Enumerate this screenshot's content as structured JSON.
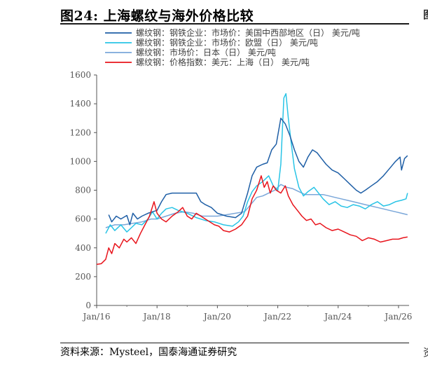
{
  "header": {
    "title": "图24:  上海螺纹与海外价格比较",
    "source": "资料来源：Mysteel，国泰海通证券研究",
    "edge_glyph_top": "图",
    "edge_glyph_bottom": "资"
  },
  "chart_data": {
    "type": "line",
    "title": "",
    "xlabel": "",
    "ylabel": "",
    "ylim": [
      0,
      1600
    ],
    "yticks": [
      0,
      200,
      400,
      600,
      800,
      1000,
      1200,
      1400,
      1600
    ],
    "xticks": [
      "Jan/16",
      "Jan/18",
      "Jan/20",
      "Jan/22",
      "Jan/24",
      "Jan/26"
    ],
    "xrange": [
      2016.0,
      2026.35
    ],
    "grid": false,
    "legend_position": "top",
    "series": [
      {
        "name": "螺纹钢：钢铁企业：市场价：美国中西部地区（日） 美元/吨",
        "color": "#1f5fa6",
        "points": [
          [
            2016.4,
            630
          ],
          [
            2016.5,
            580
          ],
          [
            2016.65,
            620
          ],
          [
            2016.8,
            600
          ],
          [
            2017.0,
            625
          ],
          [
            2017.1,
            560
          ],
          [
            2017.2,
            640
          ],
          [
            2017.35,
            600
          ],
          [
            2017.5,
            620
          ],
          [
            2017.7,
            640
          ],
          [
            2017.85,
            650
          ],
          [
            2018.0,
            660
          ],
          [
            2018.15,
            720
          ],
          [
            2018.3,
            770
          ],
          [
            2018.5,
            780
          ],
          [
            2018.7,
            780
          ],
          [
            2019.0,
            780
          ],
          [
            2019.3,
            780
          ],
          [
            2019.45,
            720
          ],
          [
            2019.6,
            700
          ],
          [
            2019.8,
            680
          ],
          [
            2020.0,
            640
          ],
          [
            2020.3,
            620
          ],
          [
            2020.6,
            610
          ],
          [
            2020.8,
            640
          ],
          [
            2021.0,
            780
          ],
          [
            2021.15,
            900
          ],
          [
            2021.3,
            960
          ],
          [
            2021.5,
            980
          ],
          [
            2021.65,
            990
          ],
          [
            2021.8,
            1080
          ],
          [
            2021.95,
            1120
          ],
          [
            2022.1,
            1300
          ],
          [
            2022.25,
            1260
          ],
          [
            2022.4,
            1180
          ],
          [
            2022.55,
            1080
          ],
          [
            2022.7,
            1000
          ],
          [
            2022.85,
            960
          ],
          [
            2023.0,
            1030
          ],
          [
            2023.15,
            1080
          ],
          [
            2023.3,
            1060
          ],
          [
            2023.45,
            1020
          ],
          [
            2023.6,
            980
          ],
          [
            2023.8,
            940
          ],
          [
            2024.0,
            920
          ],
          [
            2024.2,
            880
          ],
          [
            2024.4,
            840
          ],
          [
            2024.6,
            800
          ],
          [
            2024.75,
            780
          ],
          [
            2024.9,
            800
          ],
          [
            2025.1,
            830
          ],
          [
            2025.3,
            860
          ],
          [
            2025.5,
            900
          ],
          [
            2025.7,
            950
          ],
          [
            2025.9,
            1000
          ],
          [
            2026.05,
            1030
          ],
          [
            2026.1,
            940
          ],
          [
            2026.2,
            1020
          ],
          [
            2026.3,
            1040
          ]
        ]
      },
      {
        "name": "螺纹钢：钢铁企业：市场价：欧盟（日） 美元/吨",
        "color": "#29c4e6",
        "points": [
          [
            2016.3,
            500
          ],
          [
            2016.45,
            560
          ],
          [
            2016.6,
            520
          ],
          [
            2016.8,
            560
          ],
          [
            2017.0,
            510
          ],
          [
            2017.15,
            540
          ],
          [
            2017.3,
            570
          ],
          [
            2017.5,
            560
          ],
          [
            2017.7,
            600
          ],
          [
            2017.85,
            650
          ],
          [
            2018.0,
            600
          ],
          [
            2018.15,
            640
          ],
          [
            2018.3,
            670
          ],
          [
            2018.5,
            680
          ],
          [
            2018.7,
            660
          ],
          [
            2019.0,
            640
          ],
          [
            2019.3,
            610
          ],
          [
            2019.6,
            590
          ],
          [
            2019.9,
            580
          ],
          [
            2020.2,
            560
          ],
          [
            2020.5,
            550
          ],
          [
            2020.7,
            580
          ],
          [
            2020.85,
            620
          ],
          [
            2021.0,
            720
          ],
          [
            2021.15,
            790
          ],
          [
            2021.3,
            830
          ],
          [
            2021.5,
            860
          ],
          [
            2021.7,
            900
          ],
          [
            2021.85,
            830
          ],
          [
            2022.0,
            800
          ],
          [
            2022.1,
            980
          ],
          [
            2022.2,
            1440
          ],
          [
            2022.27,
            1470
          ],
          [
            2022.35,
            1300
          ],
          [
            2022.45,
            1120
          ],
          [
            2022.55,
            950
          ],
          [
            2022.7,
            820
          ],
          [
            2022.85,
            760
          ],
          [
            2023.0,
            790
          ],
          [
            2023.2,
            820
          ],
          [
            2023.35,
            780
          ],
          [
            2023.5,
            740
          ],
          [
            2023.7,
            700
          ],
          [
            2023.9,
            720
          ],
          [
            2024.1,
            690
          ],
          [
            2024.3,
            680
          ],
          [
            2024.5,
            700
          ],
          [
            2024.7,
            690
          ],
          [
            2024.9,
            670
          ],
          [
            2025.1,
            700
          ],
          [
            2025.3,
            720
          ],
          [
            2025.5,
            690
          ],
          [
            2025.7,
            700
          ],
          [
            2025.9,
            720
          ],
          [
            2026.1,
            730
          ],
          [
            2026.25,
            740
          ],
          [
            2026.3,
            780
          ]
        ]
      },
      {
        "name": "螺纹钢：市场价：日本（日） 美元/吨",
        "color": "#7aa7d9",
        "points": [
          [
            2016.3,
            540
          ],
          [
            2016.6,
            560
          ],
          [
            2016.9,
            560
          ],
          [
            2017.2,
            570
          ],
          [
            2017.5,
            580
          ],
          [
            2017.8,
            600
          ],
          [
            2018.0,
            600
          ],
          [
            2018.3,
            620
          ],
          [
            2018.6,
            640
          ],
          [
            2018.9,
            650
          ],
          [
            2019.2,
            640
          ],
          [
            2019.5,
            620
          ],
          [
            2019.8,
            620
          ],
          [
            2020.0,
            620
          ],
          [
            2020.3,
            630
          ],
          [
            2020.6,
            640
          ],
          [
            2020.9,
            650
          ],
          [
            2021.1,
            700
          ],
          [
            2021.3,
            750
          ],
          [
            2021.5,
            760
          ],
          [
            2021.7,
            780
          ],
          [
            2021.9,
            800
          ],
          [
            2022.1,
            840
          ],
          [
            2022.3,
            820
          ],
          [
            2022.5,
            810
          ],
          [
            2022.7,
            790
          ],
          [
            2022.9,
            770
          ],
          [
            2023.1,
            770
          ],
          [
            2023.3,
            770
          ],
          [
            2023.5,
            770
          ],
          [
            2023.7,
            760
          ],
          [
            2023.9,
            750
          ],
          [
            2024.1,
            740
          ],
          [
            2024.3,
            730
          ],
          [
            2024.5,
            720
          ],
          [
            2024.7,
            710
          ],
          [
            2024.9,
            700
          ],
          [
            2025.1,
            690
          ],
          [
            2025.3,
            680
          ],
          [
            2025.5,
            670
          ],
          [
            2025.7,
            660
          ],
          [
            2025.9,
            650
          ],
          [
            2026.1,
            640
          ],
          [
            2026.3,
            630
          ]
        ]
      },
      {
        "name": "螺纹钢：价格指数：美元：上海（日） 美元/吨",
        "color": "#e8141c",
        "points": [
          [
            2016.0,
            285
          ],
          [
            2016.15,
            290
          ],
          [
            2016.3,
            320
          ],
          [
            2016.4,
            400
          ],
          [
            2016.5,
            360
          ],
          [
            2016.6,
            430
          ],
          [
            2016.75,
            400
          ],
          [
            2016.9,
            460
          ],
          [
            2017.0,
            440
          ],
          [
            2017.15,
            470
          ],
          [
            2017.3,
            430
          ],
          [
            2017.45,
            500
          ],
          [
            2017.6,
            560
          ],
          [
            2017.75,
            620
          ],
          [
            2017.9,
            720
          ],
          [
            2018.0,
            640
          ],
          [
            2018.15,
            600
          ],
          [
            2018.3,
            580
          ],
          [
            2018.5,
            620
          ],
          [
            2018.7,
            650
          ],
          [
            2018.85,
            680
          ],
          [
            2019.0,
            620
          ],
          [
            2019.15,
            600
          ],
          [
            2019.3,
            640
          ],
          [
            2019.45,
            620
          ],
          [
            2019.6,
            600
          ],
          [
            2019.75,
            580
          ],
          [
            2019.9,
            560
          ],
          [
            2020.05,
            550
          ],
          [
            2020.2,
            520
          ],
          [
            2020.4,
            510
          ],
          [
            2020.6,
            530
          ],
          [
            2020.8,
            560
          ],
          [
            2021.0,
            620
          ],
          [
            2021.15,
            740
          ],
          [
            2021.3,
            800
          ],
          [
            2021.45,
            900
          ],
          [
            2021.55,
            820
          ],
          [
            2021.65,
            860
          ],
          [
            2021.75,
            780
          ],
          [
            2021.85,
            830
          ],
          [
            2021.95,
            800
          ],
          [
            2022.1,
            780
          ],
          [
            2022.25,
            830
          ],
          [
            2022.35,
            760
          ],
          [
            2022.5,
            700
          ],
          [
            2022.65,
            660
          ],
          [
            2022.8,
            620
          ],
          [
            2022.95,
            590
          ],
          [
            2023.1,
            600
          ],
          [
            2023.25,
            560
          ],
          [
            2023.4,
            570
          ],
          [
            2023.6,
            540
          ],
          [
            2023.8,
            520
          ],
          [
            2024.0,
            530
          ],
          [
            2024.2,
            510
          ],
          [
            2024.4,
            490
          ],
          [
            2024.6,
            480
          ],
          [
            2024.8,
            450
          ],
          [
            2025.0,
            470
          ],
          [
            2025.2,
            460
          ],
          [
            2025.4,
            440
          ],
          [
            2025.6,
            450
          ],
          [
            2025.8,
            460
          ],
          [
            2026.0,
            460
          ],
          [
            2026.15,
            470
          ],
          [
            2026.3,
            475
          ]
        ]
      }
    ]
  }
}
